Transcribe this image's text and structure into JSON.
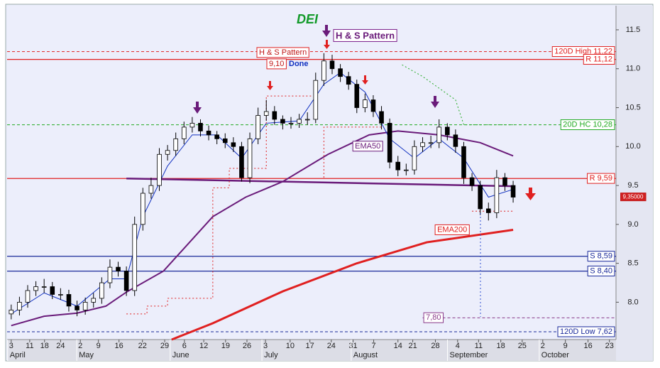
{
  "chart_data": {
    "type": "candlestick",
    "title": "DEI",
    "xlim": [
      -1,
      147
    ],
    "ylim": [
      7.52,
      11.81
    ],
    "yticks": [
      {
        "value": 8,
        "label": "8.0"
      },
      8.5,
      {
        "value": 9,
        "label": "9.0"
      },
      9.5,
      {
        "value": 10,
        "label": "10.0"
      },
      10.5,
      {
        "value": 11,
        "label": "11.0"
      },
      11.5
    ],
    "xticks": [
      {
        "value": 0,
        "label": "3"
      },
      {
        "value": 4.5,
        "label": "11"
      },
      {
        "value": 8.1,
        "label": "18"
      },
      {
        "value": 12,
        "label": "24"
      },
      {
        "value": 16.8,
        "label": "2"
      },
      {
        "value": 21.2,
        "label": "9"
      },
      {
        "value": 26.2,
        "label": "16"
      },
      {
        "value": 31.9,
        "label": "22"
      },
      {
        "value": 37.3,
        "label": "29"
      },
      {
        "value": 42.1,
        "label": "6"
      },
      {
        "value": 46.8,
        "label": "12"
      },
      {
        "value": 52.1,
        "label": "19"
      },
      {
        "value": 57.3,
        "label": "26"
      },
      {
        "value": 61.8,
        "label": "3"
      },
      {
        "value": 67.8,
        "label": "10"
      },
      {
        "value": 72.6,
        "label": "17"
      },
      {
        "value": 77.8,
        "label": "24"
      },
      {
        "value": 83.1,
        "label": "31"
      },
      {
        "value": 88.1,
        "label": "7"
      },
      {
        "value": 94,
        "label": "14"
      },
      {
        "value": 97.6,
        "label": "21"
      },
      {
        "value": 103.1,
        "label": "28"
      },
      {
        "value": 108.5,
        "label": "4"
      },
      {
        "value": 113.6,
        "label": "11"
      },
      {
        "value": 119,
        "label": "18"
      },
      {
        "value": 124.2,
        "label": "25"
      },
      {
        "value": 129.2,
        "label": "2"
      },
      {
        "value": 134.7,
        "label": "9"
      },
      {
        "value": 140.2,
        "label": "16"
      },
      {
        "value": 145.4,
        "label": "23"
      }
    ],
    "month_ticks": [
      {
        "value": 0,
        "label": "April"
      },
      {
        "value": 16.8,
        "label": "May"
      },
      {
        "value": 39.5,
        "label": "June"
      },
      {
        "value": 61.8,
        "label": "July"
      },
      {
        "value": 83.5,
        "label": "August"
      },
      {
        "value": 106.9,
        "label": "September"
      },
      {
        "value": 129.2,
        "label": "October"
      }
    ],
    "x": [
      0,
      2,
      4,
      6,
      8,
      10,
      12,
      14,
      16,
      18,
      20,
      22,
      24,
      26,
      28,
      30,
      32,
      34,
      36,
      38,
      40,
      42,
      44,
      46,
      48,
      50,
      52,
      54,
      56,
      58,
      60,
      62,
      64,
      66,
      68,
      70,
      72,
      74,
      76,
      78,
      80,
      82,
      84,
      86,
      88,
      90,
      92,
      94,
      96,
      98,
      100,
      102,
      104,
      106,
      108,
      110,
      112,
      114,
      116,
      118,
      120,
      122
    ],
    "open": [
      7.85,
      7.9,
      8.0,
      8.15,
      8.2,
      8.2,
      8.1,
      8.1,
      7.95,
      7.9,
      8.0,
      8.05,
      8.25,
      8.45,
      8.4,
      8.15,
      9.0,
      9.4,
      9.5,
      9.9,
      9.95,
      10.1,
      10.25,
      10.3,
      10.2,
      10.15,
      10.1,
      10.05,
      10.0,
      9.6,
      10.1,
      10.4,
      10.45,
      10.35,
      10.3,
      10.3,
      10.35,
      10.35,
      10.85,
      11.1,
      11.0,
      10.9,
      10.8,
      10.5,
      10.6,
      10.45,
      10.3,
      9.8,
      9.7,
      9.7,
      10.0,
      10.05,
      10.05,
      10.25,
      10.15,
      10.0,
      9.6,
      9.5,
      9.2,
      9.15,
      9.6,
      9.5
    ],
    "high": [
      7.97,
      8.07,
      8.22,
      8.27,
      8.3,
      8.26,
      8.18,
      8.16,
      8.02,
      8.06,
      8.12,
      8.32,
      8.55,
      8.52,
      8.46,
      9.1,
      9.47,
      9.6,
      9.98,
      10.02,
      10.18,
      10.32,
      10.38,
      10.35,
      10.27,
      10.2,
      10.17,
      10.12,
      10.06,
      10.18,
      10.5,
      10.6,
      10.52,
      10.4,
      10.38,
      10.42,
      10.44,
      10.95,
      11.2,
      11.18,
      11.06,
      10.96,
      10.86,
      10.68,
      10.66,
      10.52,
      10.36,
      9.88,
      9.78,
      10.08,
      10.12,
      10.14,
      10.35,
      10.3,
      10.22,
      10.06,
      9.66,
      9.56,
      9.28,
      9.7,
      9.66,
      9.56
    ],
    "low": [
      7.78,
      7.83,
      7.93,
      8.08,
      8.12,
      8.04,
      8.03,
      7.88,
      7.82,
      7.84,
      7.93,
      7.98,
      8.18,
      8.33,
      8.08,
      8.08,
      8.92,
      9.33,
      9.43,
      9.82,
      9.88,
      10.03,
      10.18,
      10.13,
      10.08,
      10.03,
      9.98,
      9.93,
      9.55,
      9.53,
      10.03,
      10.33,
      10.28,
      10.22,
      10.23,
      10.24,
      10.28,
      10.3,
      10.78,
      10.93,
      10.83,
      10.73,
      10.43,
      10.44,
      10.38,
      10.22,
      9.72,
      9.62,
      9.63,
      9.64,
      9.93,
      9.98,
      9.98,
      10.08,
      9.92,
      9.52,
      9.43,
      9.12,
      9.05,
      9.08,
      9.43,
      9.28
    ],
    "close": [
      7.9,
      8.0,
      8.15,
      8.2,
      8.2,
      8.1,
      8.1,
      7.95,
      7.9,
      8.0,
      8.05,
      8.25,
      8.45,
      8.4,
      8.15,
      9.0,
      9.4,
      9.5,
      9.9,
      9.95,
      10.1,
      10.25,
      10.3,
      10.2,
      10.15,
      10.1,
      10.05,
      10.0,
      9.6,
      10.1,
      10.4,
      10.45,
      10.35,
      10.3,
      10.3,
      10.35,
      10.35,
      10.85,
      11.1,
      11.0,
      10.9,
      10.8,
      10.5,
      10.6,
      10.45,
      10.3,
      9.8,
      9.7,
      9.7,
      10.0,
      10.05,
      10.05,
      10.25,
      10.15,
      10.0,
      9.6,
      9.5,
      9.2,
      9.15,
      9.6,
      9.5,
      9.35
    ],
    "up_color": "#ffffff",
    "down_color": "#000000",
    "series": [
      {
        "name": "EMA50",
        "color": "#6a1b7a",
        "width": 2,
        "x": [
          0,
          8,
          16,
          23,
          28,
          37,
          49,
          57,
          66,
          77,
          87,
          94,
          104,
          114,
          122
        ],
        "values": [
          7.7,
          7.82,
          7.86,
          7.95,
          8.13,
          8.4,
          9.1,
          9.35,
          9.55,
          9.9,
          10.15,
          10.2,
          10.15,
          10.05,
          9.88
        ]
      },
      {
        "name": "EMA200",
        "color": "#e02020",
        "width": 3,
        "x": [
          39,
          49,
          66,
          84,
          101,
          122
        ],
        "values": [
          7.52,
          7.73,
          8.14,
          8.5,
          8.77,
          8.93
        ]
      },
      {
        "color": "#1030c0",
        "width": 1,
        "x": [
          0,
          8,
          16,
          24,
          28,
          32,
          38,
          44,
          50,
          56,
          62,
          70,
          76,
          80,
          86,
          92,
          98,
          104,
          110,
          116,
          122
        ],
        "values": [
          7.85,
          8.12,
          7.95,
          8.3,
          8.3,
          9.1,
          9.75,
          10.15,
          10.15,
          9.85,
          10.3,
          10.33,
          10.8,
          10.95,
          10.7,
          10.1,
          9.85,
          10.1,
          9.85,
          9.35,
          9.45
        ]
      },
      {
        "color": "#e02020",
        "width": 1,
        "dash": true,
        "x": [
          28,
          33,
          33,
          38,
          38,
          49,
          49,
          53,
          53,
          62,
          62,
          73,
          74,
          76,
          76,
          90,
          91,
          112,
          122
        ],
        "values": [
          7.85,
          7.85,
          7.95,
          7.95,
          8.05,
          8.05,
          9.47,
          9.47,
          9.72,
          9.72,
          10.65,
          10.65,
          null,
          9.6,
          10.25,
          10.25,
          null,
          9.17,
          9.17
        ]
      },
      {
        "color": "#22aa22",
        "width": 1,
        "dash": true,
        "x": [
          95,
          100,
          104,
          108,
          110,
          122
        ],
        "values": [
          11.05,
          10.9,
          10.75,
          10.6,
          10.28,
          10.28
        ]
      }
    ],
    "neckline": {
      "color": "#6a1b7a",
      "x": [
        28,
        122
      ],
      "values": [
        9.59,
        9.49
      ]
    },
    "levels": [
      {
        "label": "120D High 11,22",
        "value": 11.22,
        "color": "#e02020",
        "dash": true
      },
      {
        "label": "R 11,12",
        "value": 11.12,
        "color": "#e02020",
        "dash": false
      },
      {
        "label": "20D HC 10,28",
        "value": 10.28,
        "color": "#22aa22",
        "dash": true
      },
      {
        "label": "R 9,59",
        "value": 9.59,
        "color": "#e02020",
        "dash": false
      },
      {
        "label": "S 8,59",
        "value": 8.59,
        "color": "#1a2a9a",
        "dash": false
      },
      {
        "label": "S 8,40",
        "value": 8.4,
        "color": "#1a2a9a",
        "dash": false
      },
      {
        "label": "120D Low 7,62",
        "value": 7.62,
        "color": "#1a2a9a",
        "dash": true
      },
      {
        "label": "7,80",
        "value": 7.8,
        "color": "#8a3a8a",
        "dash": true,
        "from": 100
      }
    ],
    "last_price": {
      "label": "9,35000",
      "value": 9.35
    },
    "annotations": {
      "pattern_top": "H & S Pattern",
      "pattern_red": "H & S Pattern",
      "target": "9,10",
      "status": "Done"
    }
  }
}
